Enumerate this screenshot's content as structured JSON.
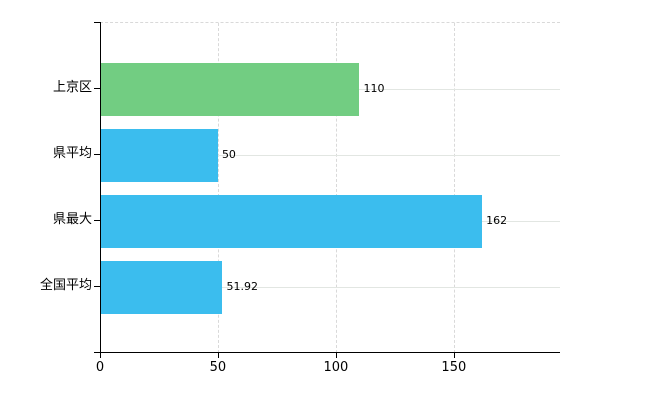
{
  "chart_data": {
    "type": "bar",
    "orientation": "horizontal",
    "title": "",
    "xlabel": "",
    "ylabel": "",
    "categories": [
      "上京区",
      "県平均",
      "県最大",
      "全国平均"
    ],
    "values": [
      110,
      50,
      162,
      51.92
    ],
    "value_labels": [
      "110",
      "50",
      "162",
      "51.92"
    ],
    "bar_colors": [
      "#72cd82",
      "#3bbdee",
      "#3bbdee",
      "#3bbdee"
    ],
    "x_ticks": [
      0,
      50,
      100,
      150
    ],
    "x_tick_labels": [
      "0",
      "50",
      "100",
      "150"
    ],
    "xlim": [
      0,
      195
    ],
    "grid": true,
    "legend": false
  },
  "colors": {
    "bar_green": "#72cd82",
    "bar_blue": "#3bbdee",
    "axis": "#000000",
    "grid_dashed": "#d9d9d9",
    "grid_solid": "#e2e6e2",
    "text": "#000000",
    "background": "#ffffff"
  }
}
